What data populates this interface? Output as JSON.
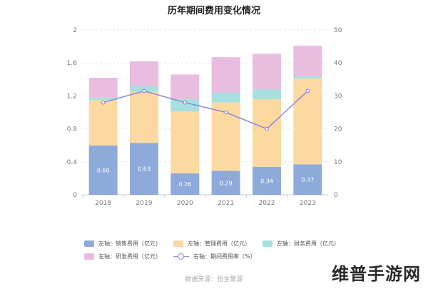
{
  "source": "数据来源：恒生聚源",
  "watermark": "维普手游网",
  "colors": {
    "sales": "#8eaadb",
    "admin": "#fbd9a0",
    "finance": "#a7e0de",
    "rnd": "#e9bde0",
    "rate": "#8f8be0"
  },
  "legend": [
    {
      "id": "sales",
      "label": "左轴：销售费用（亿元）",
      "kind": "swatch"
    },
    {
      "id": "admin",
      "label": "左轴：管理费用（亿元）",
      "kind": "swatch"
    },
    {
      "id": "finance",
      "label": "左轴：财务费用（亿元）",
      "kind": "swatch"
    },
    {
      "id": "rnd",
      "label": "左轴：研发费用（亿元）",
      "kind": "swatch"
    },
    {
      "id": "rate",
      "label": "右轴：期间费用率（%）",
      "kind": "line"
    }
  ],
  "chart_data": {
    "type": "bar",
    "title": "历年期间费用变化情况",
    "stacked": true,
    "categories": [
      "2018",
      "2019",
      "2020",
      "2021",
      "2022",
      "2023"
    ],
    "series": [
      {
        "name": "左轴：销售费用（亿元）",
        "key": "sales",
        "values": [
          0.6,
          0.63,
          0.26,
          0.29,
          0.34,
          0.37
        ]
      },
      {
        "name": "左轴：管理费用（亿元）",
        "key": "admin",
        "values": [
          0.55,
          0.62,
          0.75,
          0.83,
          0.82,
          1.04
        ]
      },
      {
        "name": "左轴：财务费用（亿元）",
        "key": "finance",
        "values": [
          0.03,
          0.07,
          0.15,
          0.12,
          0.12,
          0.03
        ]
      },
      {
        "name": "左轴：研发费用（亿元）",
        "key": "rnd",
        "values": [
          0.24,
          0.3,
          0.3,
          0.43,
          0.43,
          0.37
        ]
      }
    ],
    "line_series": {
      "name": "右轴：期间费用率（%）",
      "key": "rate",
      "values": [
        28,
        31.5,
        28,
        25,
        20,
        31.5
      ]
    },
    "data_labels": [
      "0.60",
      "0.63",
      "0.26",
      "0.29",
      "0.34",
      "0.37"
    ],
    "ylim_left": [
      0,
      2
    ],
    "yticks_left": [
      "0",
      "0.4",
      "0.8",
      "1.2",
      "1.6",
      "2"
    ],
    "ylim_right": [
      0,
      50
    ],
    "yticks_right": [
      "0",
      "10",
      "20",
      "30",
      "40",
      "50"
    ],
    "grid": true,
    "legend_position": "bottom"
  }
}
